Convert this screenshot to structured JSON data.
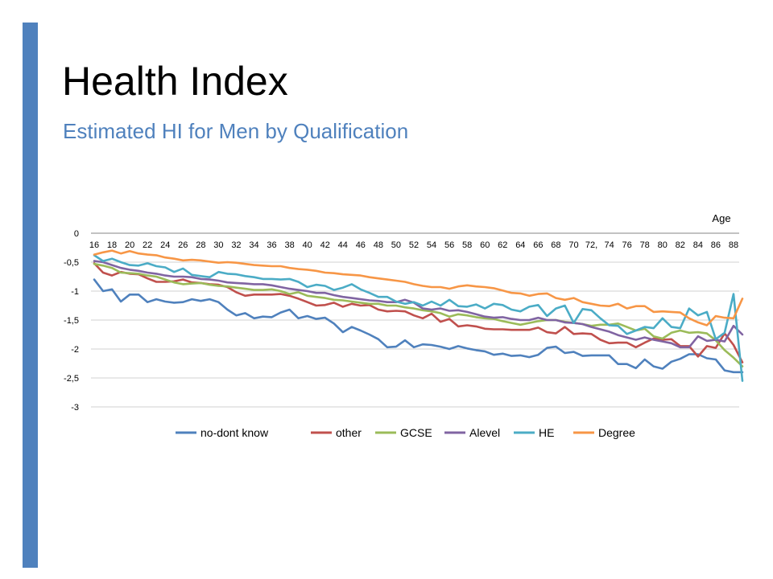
{
  "slide": {
    "title": "Health Index",
    "subtitle": "Estimated HI for Men by Qualification",
    "accent_color": "#4f81bd"
  },
  "chart_data": {
    "type": "line",
    "xlabel": "Age",
    "ylabel": "",
    "xlim": [
      16,
      89
    ],
    "ylim": [
      -3,
      0
    ],
    "y_ticks": [
      0,
      -0.5,
      -1,
      -1.5,
      -2,
      -2.5,
      -3
    ],
    "y_tick_labels": [
      "0",
      "-0,5",
      "-1",
      "-1,5",
      "-2",
      "-2,5",
      "-3"
    ],
    "x_ticks": [
      16,
      18,
      20,
      22,
      24,
      26,
      28,
      30,
      32,
      34,
      36,
      38,
      40,
      42,
      44,
      46,
      48,
      50,
      52,
      54,
      56,
      58,
      60,
      62,
      64,
      66,
      68,
      70,
      72,
      74,
      76,
      78,
      80,
      82,
      84,
      86,
      88
    ],
    "x_tick_labels": [
      "16",
      "18",
      "20",
      "22",
      "24",
      "26",
      "28",
      "30",
      "32",
      "34",
      "36",
      "38",
      "40",
      "42",
      "44",
      "46",
      "48",
      "50",
      "52",
      "54",
      "56",
      "58",
      "60",
      "62",
      "64",
      "66",
      "68",
      "70",
      "72,",
      "74",
      "76",
      "78",
      "80",
      "82",
      "84",
      "86",
      "88"
    ],
    "grid": true,
    "legend_position": "bottom",
    "x": [
      16,
      17,
      18,
      19,
      20,
      21,
      22,
      23,
      24,
      25,
      26,
      27,
      28,
      29,
      30,
      31,
      32,
      33,
      34,
      35,
      36,
      37,
      38,
      39,
      40,
      41,
      42,
      43,
      44,
      45,
      46,
      47,
      48,
      49,
      50,
      51,
      52,
      53,
      54,
      55,
      56,
      57,
      58,
      59,
      60,
      61,
      62,
      63,
      64,
      65,
      66,
      67,
      68,
      69,
      70,
      71,
      72,
      73,
      74,
      75,
      76,
      77,
      78,
      79,
      80,
      81,
      82,
      83,
      84,
      85,
      86,
      87,
      88,
      89
    ],
    "series": [
      {
        "name": "no-dont know",
        "color": "#4f81bd",
        "values": [
          -0.8,
          -1.0,
          -0.97,
          -1.18,
          -1.06,
          -1.06,
          -1.19,
          -1.14,
          -1.18,
          -1.2,
          -1.19,
          -1.14,
          -1.17,
          -1.14,
          -1.19,
          -1.32,
          -1.42,
          -1.38,
          -1.47,
          -1.44,
          -1.45,
          -1.37,
          -1.32,
          -1.47,
          -1.43,
          -1.48,
          -1.46,
          -1.56,
          -1.71,
          -1.62,
          -1.68,
          -1.75,
          -1.83,
          -1.97,
          -1.96,
          -1.85,
          -1.97,
          -1.92,
          -1.93,
          -1.96,
          -2.0,
          -1.95,
          -1.99,
          -2.02,
          -2.04,
          -2.1,
          -2.08,
          -2.12,
          -2.11,
          -2.14,
          -2.1,
          -1.98,
          -1.96,
          -2.07,
          -2.05,
          -2.12,
          -2.11,
          -2.11,
          -2.11,
          -2.26,
          -2.26,
          -2.33,
          -2.18,
          -2.3,
          -2.34,
          -2.22,
          -2.17,
          -2.09,
          -2.09,
          -2.16,
          -2.18,
          -2.37,
          -2.4,
          -2.4
        ]
      },
      {
        "name": "other",
        "color": "#c0504d",
        "values": [
          -0.52,
          -0.68,
          -0.73,
          -0.67,
          -0.7,
          -0.71,
          -0.78,
          -0.84,
          -0.84,
          -0.83,
          -0.8,
          -0.85,
          -0.86,
          -0.88,
          -0.89,
          -0.93,
          -1.02,
          -1.08,
          -1.06,
          -1.06,
          -1.06,
          -1.05,
          -1.08,
          -1.13,
          -1.19,
          -1.25,
          -1.24,
          -1.2,
          -1.27,
          -1.22,
          -1.25,
          -1.24,
          -1.32,
          -1.35,
          -1.34,
          -1.35,
          -1.42,
          -1.47,
          -1.39,
          -1.53,
          -1.48,
          -1.61,
          -1.59,
          -1.61,
          -1.65,
          -1.66,
          -1.66,
          -1.67,
          -1.67,
          -1.67,
          -1.63,
          -1.71,
          -1.73,
          -1.62,
          -1.74,
          -1.73,
          -1.74,
          -1.84,
          -1.9,
          -1.89,
          -1.89,
          -1.97,
          -1.89,
          -1.82,
          -1.84,
          -1.83,
          -1.95,
          -1.95,
          -2.13,
          -1.95,
          -1.98,
          -1.73,
          -1.93,
          -2.23
        ]
      },
      {
        "name": "GCSE",
        "color": "#9bbb59",
        "values": [
          -0.53,
          -0.56,
          -0.6,
          -0.68,
          -0.69,
          -0.7,
          -0.73,
          -0.75,
          -0.8,
          -0.85,
          -0.88,
          -0.87,
          -0.86,
          -0.89,
          -0.91,
          -0.92,
          -0.94,
          -0.96,
          -0.98,
          -0.98,
          -0.97,
          -1.0,
          -1.05,
          -1.02,
          -1.08,
          -1.1,
          -1.12,
          -1.15,
          -1.16,
          -1.18,
          -1.2,
          -1.22,
          -1.22,
          -1.25,
          -1.25,
          -1.28,
          -1.3,
          -1.33,
          -1.35,
          -1.38,
          -1.44,
          -1.4,
          -1.42,
          -1.45,
          -1.47,
          -1.48,
          -1.52,
          -1.55,
          -1.58,
          -1.55,
          -1.52,
          -1.5,
          -1.5,
          -1.53,
          -1.55,
          -1.57,
          -1.6,
          -1.58,
          -1.58,
          -1.56,
          -1.62,
          -1.68,
          -1.65,
          -1.78,
          -1.82,
          -1.72,
          -1.68,
          -1.72,
          -1.71,
          -1.73,
          -1.85,
          -2.02,
          -2.15,
          -2.3
        ]
      },
      {
        "name": "Alevel",
        "color": "#8064a2",
        "values": [
          -0.48,
          -0.5,
          -0.55,
          -0.6,
          -0.63,
          -0.65,
          -0.68,
          -0.7,
          -0.73,
          -0.75,
          -0.75,
          -0.76,
          -0.79,
          -0.8,
          -0.82,
          -0.85,
          -0.86,
          -0.87,
          -0.88,
          -0.88,
          -0.9,
          -0.93,
          -0.96,
          -0.98,
          -1.0,
          -1.03,
          -1.03,
          -1.07,
          -1.1,
          -1.12,
          -1.14,
          -1.16,
          -1.17,
          -1.19,
          -1.19,
          -1.15,
          -1.2,
          -1.3,
          -1.32,
          -1.3,
          -1.34,
          -1.33,
          -1.36,
          -1.4,
          -1.44,
          -1.46,
          -1.45,
          -1.48,
          -1.5,
          -1.5,
          -1.46,
          -1.5,
          -1.5,
          -1.54,
          -1.55,
          -1.57,
          -1.62,
          -1.66,
          -1.7,
          -1.76,
          -1.8,
          -1.84,
          -1.8,
          -1.84,
          -1.87,
          -1.9,
          -1.97,
          -1.97,
          -1.78,
          -1.86,
          -1.84,
          -1.87,
          -1.6,
          -1.75
        ]
      },
      {
        "name": "HE",
        "color": "#4bacc6",
        "values": [
          -0.38,
          -0.48,
          -0.44,
          -0.5,
          -0.55,
          -0.56,
          -0.52,
          -0.57,
          -0.59,
          -0.67,
          -0.61,
          -0.72,
          -0.74,
          -0.76,
          -0.67,
          -0.7,
          -0.71,
          -0.74,
          -0.76,
          -0.79,
          -0.79,
          -0.8,
          -0.79,
          -0.84,
          -0.93,
          -0.89,
          -0.91,
          -0.98,
          -0.94,
          -0.88,
          -0.97,
          -1.03,
          -1.1,
          -1.1,
          -1.18,
          -1.22,
          -1.19,
          -1.25,
          -1.18,
          -1.25,
          -1.15,
          -1.26,
          -1.27,
          -1.23,
          -1.3,
          -1.22,
          -1.24,
          -1.32,
          -1.35,
          -1.27,
          -1.24,
          -1.43,
          -1.3,
          -1.25,
          -1.55,
          -1.31,
          -1.33,
          -1.47,
          -1.59,
          -1.6,
          -1.74,
          -1.68,
          -1.62,
          -1.64,
          -1.47,
          -1.62,
          -1.64,
          -1.3,
          -1.42,
          -1.36,
          -1.83,
          -1.72,
          -1.05,
          -2.55
        ]
      },
      {
        "name": "Degree",
        "color": "#f79646",
        "values": [
          -0.37,
          -0.33,
          -0.3,
          -0.35,
          -0.31,
          -0.35,
          -0.37,
          -0.38,
          -0.42,
          -0.44,
          -0.47,
          -0.46,
          -0.47,
          -0.49,
          -0.51,
          -0.5,
          -0.51,
          -0.53,
          -0.55,
          -0.56,
          -0.57,
          -0.57,
          -0.6,
          -0.62,
          -0.63,
          -0.65,
          -0.68,
          -0.69,
          -0.71,
          -0.72,
          -0.73,
          -0.76,
          -0.78,
          -0.8,
          -0.82,
          -0.84,
          -0.88,
          -0.91,
          -0.93,
          -0.93,
          -0.96,
          -0.92,
          -0.9,
          -0.92,
          -0.93,
          -0.95,
          -0.99,
          -1.03,
          -1.04,
          -1.08,
          -1.05,
          -1.04,
          -1.12,
          -1.15,
          -1.12,
          -1.19,
          -1.22,
          -1.25,
          -1.26,
          -1.22,
          -1.3,
          -1.26,
          -1.26,
          -1.36,
          -1.35,
          -1.36,
          -1.37,
          -1.47,
          -1.54,
          -1.59,
          -1.43,
          -1.46,
          -1.47,
          -1.13
        ]
      }
    ]
  }
}
